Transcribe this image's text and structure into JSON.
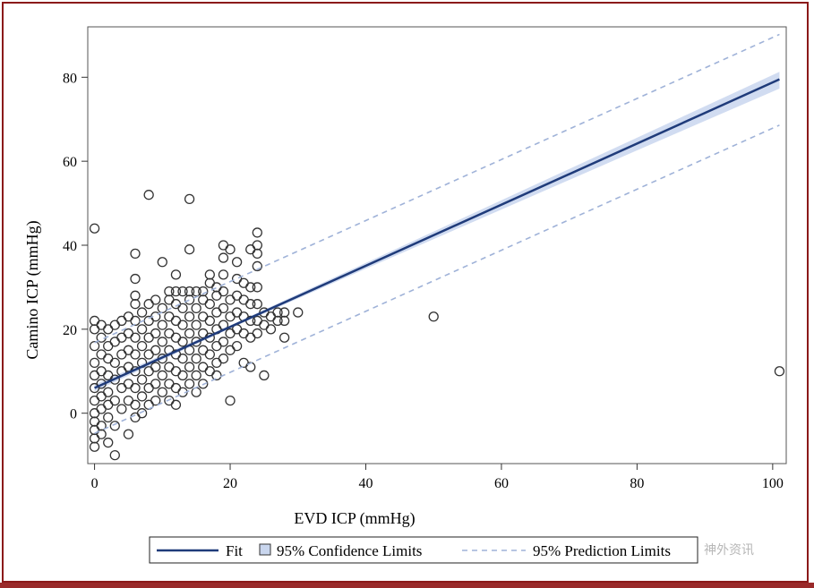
{
  "colors": {
    "frame": "#8b1a1a",
    "fit": "#1f3b7a",
    "confidence_band": "#c9d6ee",
    "prediction": "#9fb2d8",
    "points": "#333333"
  },
  "watermark": "神外资讯",
  "chart_data": {
    "type": "scatter",
    "title": "",
    "xlabel": "EVD ICP (mmHg)",
    "ylabel": "Camino ICP (mmHg)",
    "xlim": [
      -1,
      102
    ],
    "ylim": [
      -12,
      92
    ],
    "xticks": [
      0,
      20,
      40,
      60,
      80,
      100
    ],
    "yticks": [
      0,
      20,
      40,
      60,
      80
    ],
    "grid": false,
    "legend_position": "bottom",
    "legend": [
      "Fit",
      "95% Confidence Limits",
      "95% Prediction Limits"
    ],
    "fit": {
      "intercept": 6.0,
      "slope": 0.7277,
      "x_range": [
        0,
        101
      ]
    },
    "confidence_band": [
      {
        "x": 0,
        "lower": 5.2,
        "upper": 6.8
      },
      {
        "x": 20,
        "lower": 20.2,
        "upper": 20.9
      },
      {
        "x": 40,
        "lower": 34.4,
        "upper": 35.8
      },
      {
        "x": 60,
        "lower": 48.5,
        "upper": 50.7
      },
      {
        "x": 80,
        "lower": 62.6,
        "upper": 65.6
      },
      {
        "x": 101,
        "lower": 77.3,
        "upper": 81.3
      }
    ],
    "prediction_limits": {
      "lower": [
        [
          0,
          -4.8
        ],
        [
          101,
          68.6
        ]
      ],
      "upper": [
        [
          0,
          16.8
        ],
        [
          101,
          90.2
        ]
      ]
    },
    "points": [
      [
        0,
        44
      ],
      [
        0,
        22
      ],
      [
        0,
        20
      ],
      [
        0,
        16
      ],
      [
        0,
        12
      ],
      [
        0,
        9
      ],
      [
        0,
        6
      ],
      [
        0,
        3
      ],
      [
        0,
        0
      ],
      [
        0,
        -2
      ],
      [
        0,
        -4
      ],
      [
        0,
        -6
      ],
      [
        0,
        -8
      ],
      [
        1,
        21
      ],
      [
        1,
        18
      ],
      [
        1,
        14
      ],
      [
        1,
        10
      ],
      [
        1,
        7
      ],
      [
        1,
        4
      ],
      [
        1,
        1
      ],
      [
        1,
        -3
      ],
      [
        1,
        -5
      ],
      [
        2,
        20
      ],
      [
        2,
        16
      ],
      [
        2,
        13
      ],
      [
        2,
        9
      ],
      [
        2,
        5
      ],
      [
        2,
        2
      ],
      [
        2,
        -1
      ],
      [
        2,
        -7
      ],
      [
        3,
        21
      ],
      [
        3,
        17
      ],
      [
        3,
        12
      ],
      [
        3,
        8
      ],
      [
        3,
        3
      ],
      [
        3,
        -3
      ],
      [
        3,
        -10
      ],
      [
        4,
        22
      ],
      [
        4,
        18
      ],
      [
        4,
        14
      ],
      [
        4,
        10
      ],
      [
        4,
        6
      ],
      [
        4,
        1
      ],
      [
        5,
        23
      ],
      [
        5,
        19
      ],
      [
        5,
        15
      ],
      [
        5,
        11
      ],
      [
        5,
        7
      ],
      [
        5,
        3
      ],
      [
        5,
        -5
      ],
      [
        6,
        38
      ],
      [
        6,
        32
      ],
      [
        6,
        28
      ],
      [
        6,
        26
      ],
      [
        6,
        22
      ],
      [
        6,
        18
      ],
      [
        6,
        14
      ],
      [
        6,
        10
      ],
      [
        6,
        6
      ],
      [
        6,
        2
      ],
      [
        6,
        -1
      ],
      [
        7,
        24
      ],
      [
        7,
        20
      ],
      [
        7,
        16
      ],
      [
        7,
        12
      ],
      [
        7,
        8
      ],
      [
        7,
        4
      ],
      [
        7,
        0
      ],
      [
        8,
        52
      ],
      [
        8,
        26
      ],
      [
        8,
        22
      ],
      [
        8,
        18
      ],
      [
        8,
        14
      ],
      [
        8,
        10
      ],
      [
        8,
        6
      ],
      [
        8,
        2
      ],
      [
        9,
        27
      ],
      [
        9,
        23
      ],
      [
        9,
        19
      ],
      [
        9,
        15
      ],
      [
        9,
        11
      ],
      [
        9,
        7
      ],
      [
        9,
        3
      ],
      [
        10,
        36
      ],
      [
        10,
        25
      ],
      [
        10,
        21
      ],
      [
        10,
        17
      ],
      [
        10,
        13
      ],
      [
        10,
        9
      ],
      [
        10,
        5
      ],
      [
        11,
        29
      ],
      [
        11,
        27
      ],
      [
        11,
        23
      ],
      [
        11,
        19
      ],
      [
        11,
        15
      ],
      [
        11,
        11
      ],
      [
        11,
        7
      ],
      [
        11,
        3
      ],
      [
        12,
        33
      ],
      [
        12,
        29
      ],
      [
        12,
        26
      ],
      [
        12,
        22
      ],
      [
        12,
        18
      ],
      [
        12,
        14
      ],
      [
        12,
        10
      ],
      [
        12,
        6
      ],
      [
        12,
        2
      ],
      [
        13,
        29
      ],
      [
        13,
        25
      ],
      [
        13,
        21
      ],
      [
        13,
        17
      ],
      [
        13,
        13
      ],
      [
        13,
        9
      ],
      [
        13,
        5
      ],
      [
        14,
        51
      ],
      [
        14,
        39
      ],
      [
        14,
        29
      ],
      [
        14,
        27
      ],
      [
        14,
        23
      ],
      [
        14,
        19
      ],
      [
        14,
        15
      ],
      [
        14,
        11
      ],
      [
        14,
        7
      ],
      [
        15,
        29
      ],
      [
        15,
        25
      ],
      [
        15,
        21
      ],
      [
        15,
        17
      ],
      [
        15,
        13
      ],
      [
        15,
        9
      ],
      [
        15,
        5
      ],
      [
        16,
        29
      ],
      [
        16,
        27
      ],
      [
        16,
        23
      ],
      [
        16,
        19
      ],
      [
        16,
        15
      ],
      [
        16,
        11
      ],
      [
        16,
        7
      ],
      [
        17,
        33
      ],
      [
        17,
        31
      ],
      [
        17,
        26
      ],
      [
        17,
        22
      ],
      [
        17,
        18
      ],
      [
        17,
        14
      ],
      [
        17,
        10
      ],
      [
        18,
        30
      ],
      [
        18,
        28
      ],
      [
        18,
        24
      ],
      [
        18,
        20
      ],
      [
        18,
        16
      ],
      [
        18,
        12
      ],
      [
        18,
        9
      ],
      [
        19,
        40
      ],
      [
        19,
        37
      ],
      [
        19,
        33
      ],
      [
        19,
        29
      ],
      [
        19,
        25
      ],
      [
        19,
        21
      ],
      [
        19,
        17
      ],
      [
        19,
        13
      ],
      [
        20,
        39
      ],
      [
        20,
        27
      ],
      [
        20,
        23
      ],
      [
        20,
        19
      ],
      [
        20,
        15
      ],
      [
        20,
        3
      ],
      [
        21,
        36
      ],
      [
        21,
        32
      ],
      [
        21,
        28
      ],
      [
        21,
        24
      ],
      [
        21,
        20
      ],
      [
        21,
        16
      ],
      [
        22,
        31
      ],
      [
        22,
        27
      ],
      [
        22,
        23
      ],
      [
        22,
        19
      ],
      [
        22,
        12
      ],
      [
        23,
        39
      ],
      [
        23,
        30
      ],
      [
        23,
        26
      ],
      [
        23,
        22
      ],
      [
        23,
        18
      ],
      [
        23,
        11
      ],
      [
        24,
        43
      ],
      [
        24,
        40
      ],
      [
        24,
        38
      ],
      [
        24,
        35
      ],
      [
        24,
        30
      ],
      [
        24,
        26
      ],
      [
        24,
        22
      ],
      [
        24,
        19
      ],
      [
        25,
        24
      ],
      [
        25,
        21
      ],
      [
        25,
        9
      ],
      [
        26,
        23
      ],
      [
        26,
        20
      ],
      [
        27,
        24
      ],
      [
        27,
        22
      ],
      [
        28,
        24
      ],
      [
        28,
        22
      ],
      [
        28,
        18
      ],
      [
        30,
        24
      ],
      [
        50,
        23
      ],
      [
        101,
        10
      ]
    ]
  }
}
